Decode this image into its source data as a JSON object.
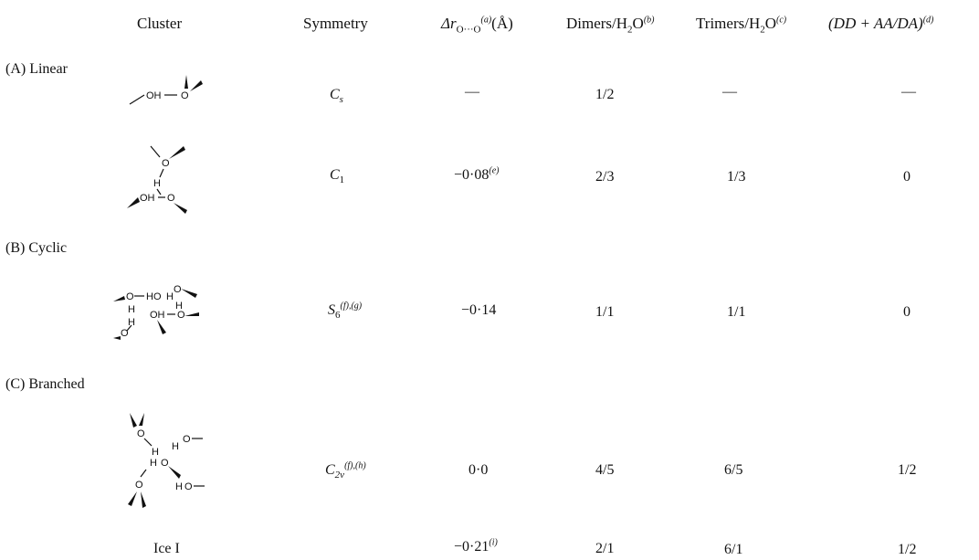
{
  "headers": {
    "cluster": "Cluster",
    "symmetry": "Symmetry",
    "delta_r_prefix": "Δr",
    "delta_r_sub": "O···O",
    "delta_r_note": "(a)",
    "delta_r_unit": "(Å)",
    "dimers_label": "Dimers/H",
    "dimers_sub": "2",
    "dimers_label2": "O",
    "dimers_note": "(b)",
    "trimers_label": "Trimers/H",
    "trimers_sub": "2",
    "trimers_label2": "O",
    "trimers_note": "(c)",
    "ratio_label": "(DD + AA/DA)",
    "ratio_note": "(d)"
  },
  "sections": {
    "linear": "(A) Linear",
    "cyclic": "(B) Cyclic",
    "branched": "(C) Branched"
  },
  "rows": [
    {
      "symmetry": "C",
      "symmetry_sub": "s",
      "symmetry_note": "",
      "delta": "—",
      "delta_note": "",
      "dimers": "1/2",
      "trimers": "—",
      "ratio": "—"
    },
    {
      "symmetry": "C",
      "symmetry_sub": "1",
      "symmetry_note": "",
      "delta": "−0·08",
      "delta_note": "(e)",
      "dimers": "2/3",
      "trimers": "1/3",
      "ratio": "0"
    },
    {
      "symmetry": "S",
      "symmetry_sub": "6",
      "symmetry_note": "(f),(g)",
      "delta": "−0·14",
      "delta_note": "",
      "dimers": "1/1",
      "trimers": "1/1",
      "ratio": "0"
    },
    {
      "symmetry": "C",
      "symmetry_sub": "2v",
      "symmetry_note": "(f),(h)",
      "delta": "0·0",
      "delta_note": "",
      "dimers": "4/5",
      "trimers": "6/5",
      "ratio": "1/2"
    }
  ],
  "ice": {
    "label": "Ice I",
    "delta": "−0·21",
    "delta_note": "(i)",
    "dimers": "2/1",
    "trimers": "6/1",
    "ratio": "1/2"
  },
  "atoms": {
    "O": "O",
    "H": "H",
    "OH": "OH",
    "HO": "HO"
  }
}
